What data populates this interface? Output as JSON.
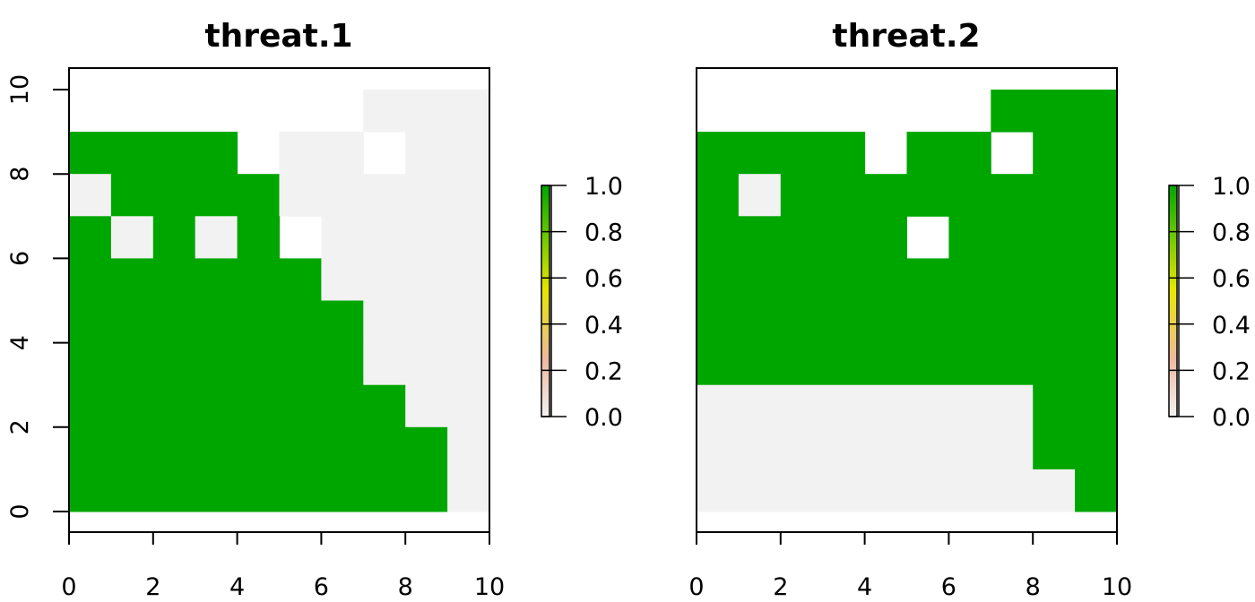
{
  "chart_data": [
    {
      "type": "heatmap",
      "title": "threat.1",
      "xlabel": "",
      "ylabel": "",
      "xlim": [
        0,
        10
      ],
      "ylim": [
        0,
        10
      ],
      "x_ticks": [
        "0",
        "2",
        "4",
        "6",
        "8",
        "10"
      ],
      "y_ticks": [
        "0",
        "2",
        "4",
        "6",
        "8",
        "10"
      ],
      "show_y_axis": true,
      "grid": false,
      "rows_top_to_bottom": [
        [
          null,
          null,
          null,
          null,
          null,
          null,
          null,
          0,
          0,
          0
        ],
        [
          1,
          1,
          1,
          1,
          null,
          0,
          0,
          null,
          0,
          0
        ],
        [
          0,
          1,
          1,
          1,
          1,
          0,
          0,
          0,
          0,
          0
        ],
        [
          1,
          0,
          1,
          0,
          1,
          null,
          0,
          0,
          0,
          0
        ],
        [
          1,
          1,
          1,
          1,
          1,
          1,
          0,
          0,
          0,
          0
        ],
        [
          1,
          1,
          1,
          1,
          1,
          1,
          1,
          0,
          0,
          0
        ],
        [
          1,
          1,
          1,
          1,
          1,
          1,
          1,
          0,
          0,
          0
        ],
        [
          1,
          1,
          1,
          1,
          1,
          1,
          1,
          1,
          0,
          0
        ],
        [
          1,
          1,
          1,
          1,
          1,
          1,
          1,
          1,
          1,
          0
        ],
        [
          1,
          1,
          1,
          1,
          1,
          1,
          1,
          1,
          1,
          0
        ]
      ],
      "legend": {
        "placement": "right",
        "min": 0,
        "max": 1,
        "ticks": [
          "0.0",
          "0.2",
          "0.4",
          "0.6",
          "0.8",
          "1.0"
        ]
      }
    },
    {
      "type": "heatmap",
      "title": "threat.2",
      "xlabel": "",
      "ylabel": "",
      "xlim": [
        0,
        10
      ],
      "ylim": [
        0,
        10
      ],
      "x_ticks": [
        "0",
        "2",
        "4",
        "6",
        "8",
        "10"
      ],
      "y_ticks": [],
      "show_y_axis": false,
      "grid": false,
      "rows_top_to_bottom": [
        [
          null,
          null,
          null,
          null,
          null,
          null,
          null,
          1,
          1,
          1
        ],
        [
          1,
          1,
          1,
          1,
          null,
          1,
          1,
          null,
          1,
          1
        ],
        [
          1,
          0,
          1,
          1,
          1,
          1,
          1,
          1,
          1,
          1
        ],
        [
          1,
          1,
          1,
          1,
          1,
          null,
          1,
          1,
          1,
          1
        ],
        [
          1,
          1,
          1,
          1,
          1,
          1,
          1,
          1,
          1,
          1
        ],
        [
          1,
          1,
          1,
          1,
          1,
          1,
          1,
          1,
          1,
          1
        ],
        [
          1,
          1,
          1,
          1,
          1,
          1,
          1,
          1,
          1,
          1
        ],
        [
          0,
          0,
          0,
          0,
          0,
          0,
          0,
          0,
          1,
          1
        ],
        [
          0,
          0,
          0,
          0,
          0,
          0,
          0,
          0,
          1,
          1
        ],
        [
          0,
          0,
          0,
          0,
          0,
          0,
          0,
          0,
          0,
          1
        ]
      ],
      "legend": {
        "placement": "right",
        "min": 0,
        "max": 1,
        "ticks": [
          "0.0",
          "0.2",
          "0.4",
          "0.6",
          "0.8",
          "1.0"
        ]
      }
    }
  ],
  "colors": {
    "zero": "#f2f2f2",
    "one": "#00a600",
    "ramp": [
      "#f2f2f2",
      "#eeb99f",
      "#e6e600",
      "#63c600",
      "#00a600"
    ]
  }
}
